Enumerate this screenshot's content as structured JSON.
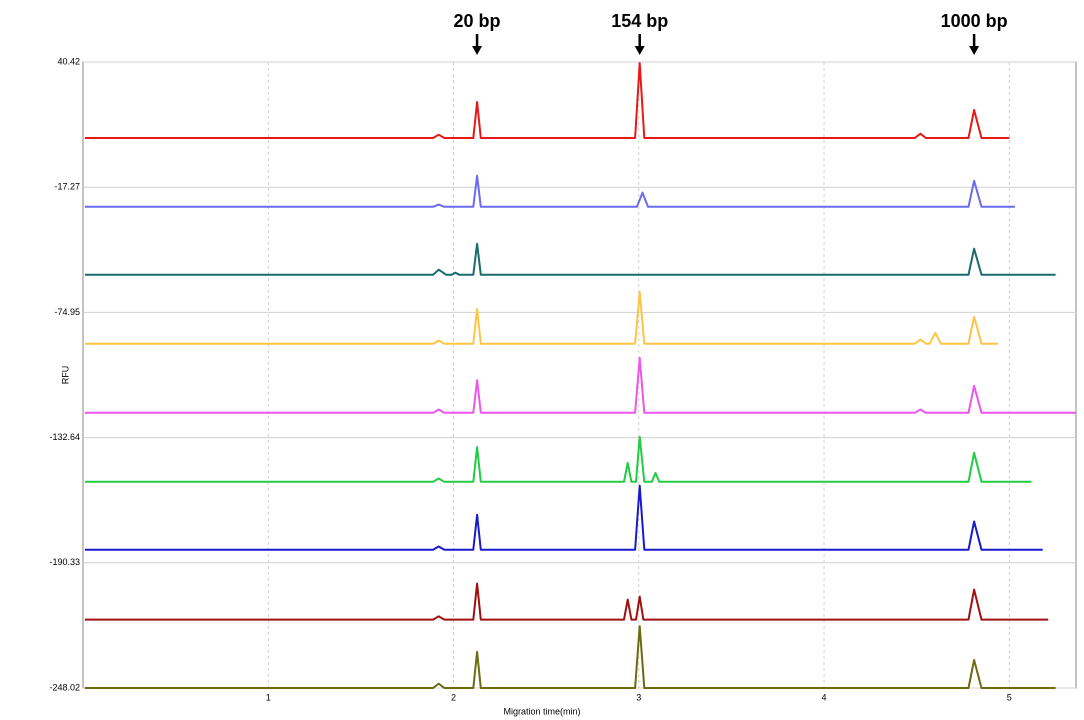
{
  "chart_data": {
    "type": "line",
    "xlabel": "Migration time(min)",
    "ylabel": "RFU",
    "annotations": [
      {
        "text": "20 bp",
        "x": 2.127
      },
      {
        "text": "154 bp",
        "x": 3.005
      },
      {
        "text": "1000 bp",
        "x": 4.81
      }
    ],
    "xlim": [
      0,
      5.36
    ],
    "ylim": [
      -248.02,
      40.42
    ],
    "xticks": [
      1,
      2,
      3,
      4,
      5
    ],
    "yticks": [
      40.42,
      -17.27,
      -74.95,
      -132.64,
      -190.33,
      -248.02
    ],
    "grid": true,
    "series": [
      {
        "color": "#e81818",
        "x": [
          0.01,
          1.89,
          1.92,
          1.95,
          2.107,
          2.127,
          2.147,
          2.98,
          3.005,
          3.03,
          4.49,
          4.52,
          4.55,
          4.78,
          4.81,
          4.85,
          5.0
        ],
        "values": [
          5.4,
          5.4,
          6.9,
          5.4,
          5.4,
          22,
          5.4,
          5.4,
          39.9,
          5.4,
          5.4,
          7.4,
          5.4,
          5.4,
          18.3,
          5.4,
          5.4
        ]
      },
      {
        "color": "#6b6bef",
        "x": [
          0.01,
          1.89,
          1.92,
          1.95,
          2.107,
          2.127,
          2.147,
          2.99,
          3.02,
          3.05,
          4.78,
          4.81,
          4.85,
          5.03
        ],
        "values": [
          -26.3,
          -26.3,
          -25.3,
          -26.3,
          -26.3,
          -12,
          -26.3,
          -26.3,
          -19.8,
          -26.3,
          -26.3,
          -14.3,
          -26.3,
          -26.3
        ]
      },
      {
        "color": "#1a6b6b",
        "x": [
          0.01,
          1.89,
          1.92,
          1.96,
          1.99,
          2.01,
          2.03,
          2.107,
          2.127,
          2.147,
          4.78,
          4.81,
          4.85,
          5.25
        ],
        "values": [
          -57.6,
          -57.6,
          -55.3,
          -57.6,
          -57.6,
          -56.6,
          -57.6,
          -57.6,
          -43.3,
          -57.6,
          -57.6,
          -45.6,
          -57.6,
          -57.6
        ]
      },
      {
        "color": "#ffc445",
        "x": [
          0.01,
          1.89,
          1.92,
          1.95,
          2.107,
          2.127,
          2.147,
          2.98,
          3.005,
          3.03,
          4.49,
          4.52,
          4.55,
          4.57,
          4.6,
          4.63,
          4.78,
          4.81,
          4.85,
          4.94
        ],
        "values": [
          -89.4,
          -89.4,
          -87.9,
          -89.4,
          -89.4,
          -73.4,
          -89.4,
          -89.4,
          -65.4,
          -89.4,
          -89.4,
          -87.4,
          -89.4,
          -89.4,
          -84.4,
          -89.4,
          -89.4,
          -77,
          -89.4,
          -89.4
        ]
      },
      {
        "color": "#ee55ee",
        "x": [
          0.01,
          1.89,
          1.92,
          1.95,
          2.107,
          2.127,
          2.147,
          2.98,
          3.005,
          3.03,
          4.49,
          4.52,
          4.55,
          4.78,
          4.81,
          4.85,
          5.36
        ],
        "values": [
          -121.2,
          -121.2,
          -119.7,
          -121.2,
          -121.2,
          -106.2,
          -121.2,
          -121.2,
          -95.9,
          -121.2,
          -121.2,
          -119.7,
          -121.2,
          -121.2,
          -108.8,
          -121.2,
          -121.2
        ]
      },
      {
        "color": "#22cc44",
        "x": [
          0.01,
          1.89,
          1.92,
          1.95,
          2.107,
          2.127,
          2.147,
          2.92,
          2.94,
          2.96,
          2.985,
          3.005,
          3.03,
          3.07,
          3.09,
          3.11,
          4.78,
          4.81,
          4.85,
          5.12
        ],
        "values": [
          -153,
          -153,
          -151.5,
          -153,
          -153,
          -137,
          -153,
          -153,
          -144.3,
          -153,
          -153,
          -132.3,
          -153,
          -153,
          -148.9,
          -153,
          -153,
          -139.6,
          -153,
          -153
        ]
      },
      {
        "color": "#1a1acc",
        "x": [
          0.01,
          1.89,
          1.92,
          1.95,
          2.107,
          2.127,
          2.147,
          2.98,
          3.005,
          3.03,
          4.78,
          4.81,
          4.85,
          5.18
        ],
        "values": [
          -184.3,
          -184.3,
          -182.8,
          -184.3,
          -184.3,
          -168.2,
          -184.3,
          -184.3,
          -154.8,
          -184.3,
          -184.3,
          -171.3,
          -184.3,
          -184.3
        ]
      },
      {
        "color": "#a01010",
        "x": [
          0.01,
          1.89,
          1.92,
          1.95,
          2.107,
          2.127,
          2.147,
          2.92,
          2.94,
          2.96,
          2.985,
          3.005,
          3.025,
          4.78,
          4.81,
          4.85,
          5.21
        ],
        "values": [
          -216.5,
          -216.5,
          -215,
          -216.5,
          -216.5,
          -199.9,
          -216.5,
          -216.5,
          -207.3,
          -216.5,
          -216.5,
          -205.9,
          -216.5,
          -216.5,
          -202.7,
          -216.5,
          -216.5
        ]
      },
      {
        "color": "#6b6b10",
        "x": [
          0.01,
          1.89,
          1.92,
          1.95,
          2.107,
          2.127,
          2.147,
          2.98,
          3.005,
          3.03,
          4.78,
          4.81,
          4.85,
          5.25
        ],
        "values": [
          -248,
          -248,
          -246,
          -248,
          -248,
          -231.4,
          -248,
          -248,
          -219.5,
          -248,
          -248,
          -235.1,
          -248,
          -248
        ]
      }
    ]
  }
}
